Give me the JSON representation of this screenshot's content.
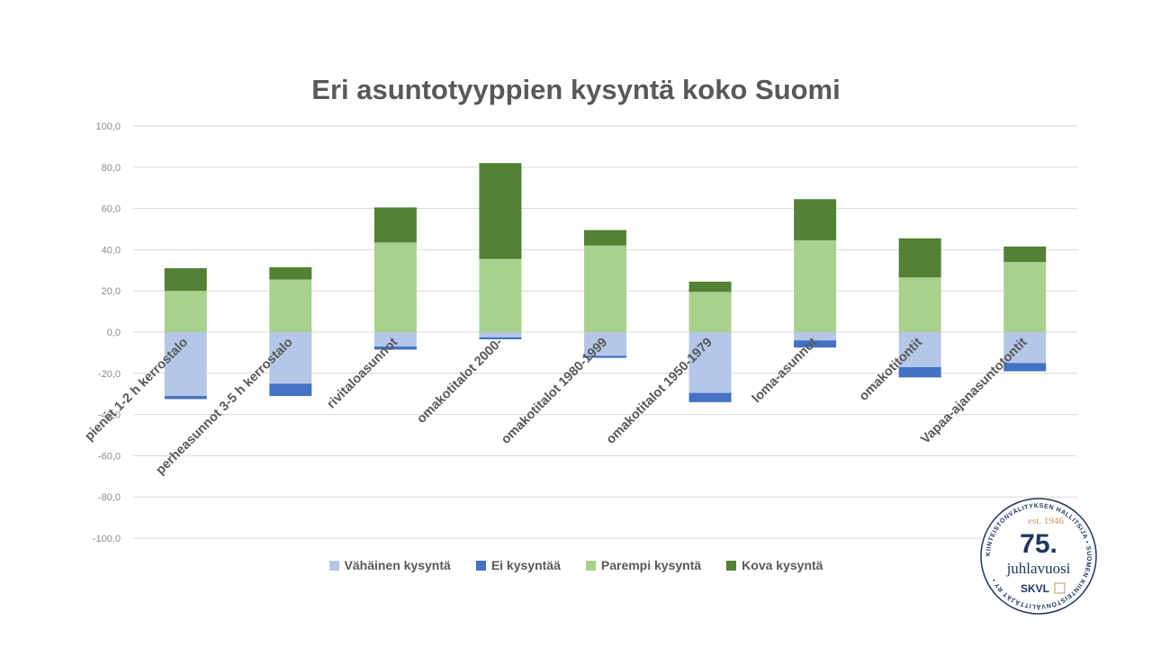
{
  "chart_data": {
    "type": "bar",
    "stacked": true,
    "title": "Eri asuntotyyppien kysyntä koko Suomi",
    "categories": [
      "pienet 1-2 h kerrostalo",
      "perheasunnot 3-5 h kerrostalo",
      "rivitaloasunnot",
      "omakotitalot 2000-",
      "omakotitalot 1980-1999",
      "omakotitalot 1950-1979",
      "loma-asunnot",
      "omakotitontit",
      "Vapaa-ajanasuntotontit"
    ],
    "series": [
      {
        "name": "Vähäinen kysyntä",
        "color": "#b4c7e7",
        "values": [
          -31,
          -25,
          -7,
          -2.5,
          -11.5,
          -29.5,
          -4,
          -17,
          -15
        ]
      },
      {
        "name": "Ei kysyntää",
        "color": "#4472c4",
        "values": [
          -1.5,
          -6,
          -1.5,
          -1,
          -1,
          -4.5,
          -3.5,
          -5,
          -4
        ]
      },
      {
        "name": "Parempi kysyntä",
        "color": "#a9d18e",
        "values": [
          20,
          25.5,
          43.5,
          35.5,
          42,
          19.5,
          44.5,
          26.5,
          34
        ]
      },
      {
        "name": "Kova kysyntä",
        "color": "#548235",
        "values": [
          11,
          6,
          17,
          46.5,
          7.5,
          5,
          20,
          19,
          7.5
        ]
      }
    ],
    "ylim": [
      -100,
      100
    ],
    "yticks": [
      "100,0",
      "80,0",
      "60,0",
      "40,0",
      "20,0",
      "0,0",
      "-20,0",
      "-40,0",
      "-60,0",
      "-80,0",
      "-100,0"
    ],
    "grid": true,
    "legend_position": "bottom"
  },
  "badge": {
    "ring_text": "KIINTEISTÖNVÄLITYKSEN HALLITSIJA • SUOMEN KIINTEISTÖNVÄLITTÄJÄT RY •",
    "est": "est. 1946",
    "number": "75.",
    "word": "juhlavuosi",
    "brand": "SKVL"
  }
}
